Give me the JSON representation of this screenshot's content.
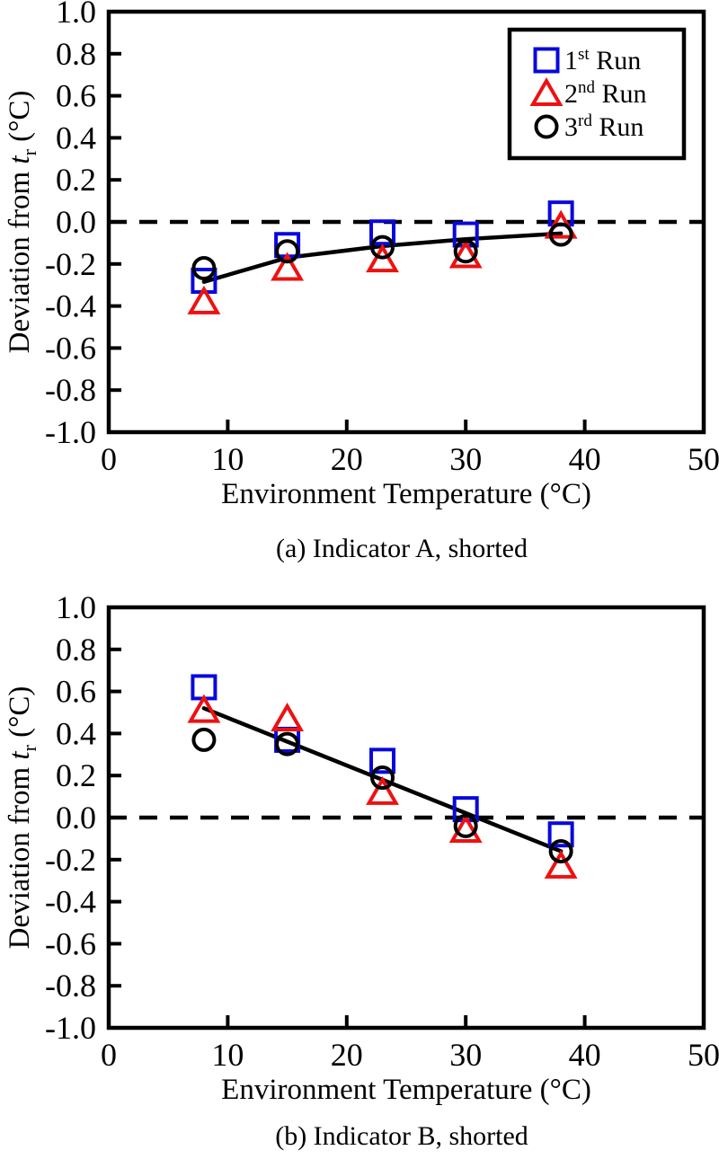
{
  "figure": {
    "background": "#ffffff",
    "captions": {
      "a": "(a) Indicator A, shorted",
      "b": "(b) Indicator B, shorted"
    }
  },
  "chart_data": [
    {
      "type": "scatter",
      "caption": "(a) Indicator A, shorted",
      "xlabel": "Environment Temperature (°C)",
      "ylabel": {
        "prefix": "Deviation from ",
        "symbol": "t",
        "subscript": "r",
        "suffix": " (°C)"
      },
      "xlim": [
        0,
        50
      ],
      "ylim": [
        -1.0,
        1.0
      ],
      "xticks": [
        0,
        10,
        20,
        30,
        40,
        50
      ],
      "ytick_labels": [
        "1.0",
        "0.8",
        "0.6",
        "0.4",
        "0.2",
        "0.0",
        "-0.2",
        "-0.4",
        "-0.6",
        "-0.8",
        "-1.0"
      ],
      "grid": false,
      "zero_line": true,
      "x": [
        8,
        15,
        23,
        30,
        38
      ],
      "series": [
        {
          "name": "1st Run",
          "marker": "square",
          "color": "#0808dd",
          "values": [
            -0.28,
            -0.11,
            -0.05,
            -0.06,
            0.04
          ]
        },
        {
          "name": "2nd Run",
          "marker": "triangle",
          "color": "#ee1111",
          "values": [
            -0.38,
            -0.22,
            -0.18,
            -0.16,
            -0.02
          ]
        },
        {
          "name": "3rd Run",
          "marker": "circle",
          "color": "#000000",
          "values": [
            -0.22,
            -0.14,
            -0.12,
            -0.14,
            -0.06
          ]
        }
      ],
      "trend_line": [
        [
          8,
          -0.285
        ],
        [
          15,
          -0.17
        ],
        [
          23,
          -0.115
        ],
        [
          30,
          -0.082
        ],
        [
          38,
          -0.055
        ]
      ],
      "legend": {
        "position": "top-right",
        "items": [
          {
            "num": "1",
            "ordinal": "st",
            "rest": " Run",
            "marker": "square",
            "color": "#0808dd"
          },
          {
            "num": "2",
            "ordinal": "nd",
            "rest": " Run",
            "marker": "triangle",
            "color": "#ee1111"
          },
          {
            "num": "3",
            "ordinal": "rd",
            "rest": " Run",
            "marker": "circle",
            "color": "#000000"
          }
        ]
      }
    },
    {
      "type": "scatter",
      "caption": "(b) Indicator B, shorted",
      "xlabel": "Environment Temperature (°C)",
      "ylabel": {
        "prefix": "Deviation from ",
        "symbol": "t",
        "subscript": "r",
        "suffix": " (°C)"
      },
      "xlim": [
        0,
        50
      ],
      "ylim": [
        -1.0,
        1.0
      ],
      "xticks": [
        0,
        10,
        20,
        30,
        40,
        50
      ],
      "ytick_labels": [
        "1.0",
        "0.8",
        "0.6",
        "0.4",
        "0.2",
        "0.0",
        "-0.2",
        "-0.4",
        "-0.6",
        "-0.8",
        "-1.0"
      ],
      "grid": false,
      "zero_line": true,
      "x": [
        8,
        15,
        23,
        30,
        38
      ],
      "series": [
        {
          "name": "1st Run",
          "marker": "square",
          "color": "#0808dd",
          "values": [
            0.62,
            0.37,
            0.27,
            0.04,
            -0.08
          ]
        },
        {
          "name": "2nd Run",
          "marker": "triangle",
          "color": "#ee1111",
          "values": [
            0.51,
            0.47,
            0.12,
            -0.06,
            -0.23
          ]
        },
        {
          "name": "3rd Run",
          "marker": "circle",
          "color": "#000000",
          "values": [
            0.37,
            0.35,
            0.19,
            -0.04,
            -0.16
          ]
        }
      ],
      "trend_line": [
        [
          8,
          0.52
        ],
        [
          38,
          -0.16
        ]
      ],
      "legend": null
    }
  ]
}
